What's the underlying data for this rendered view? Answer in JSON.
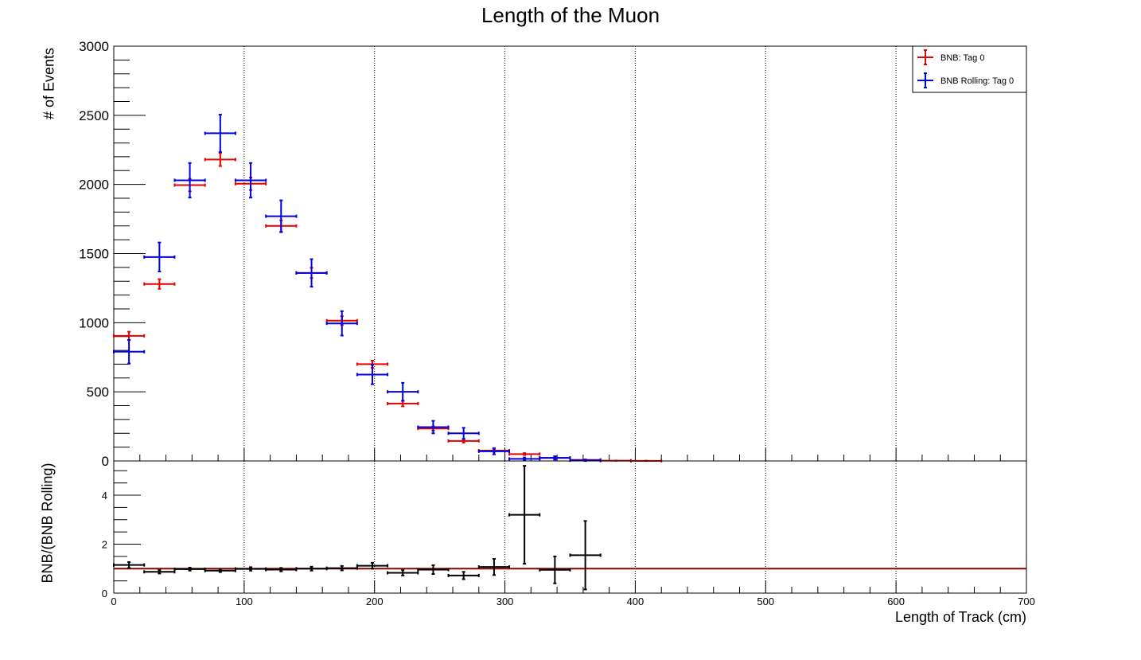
{
  "chart_data": [
    {
      "type": "scatter",
      "title": "Length of the Muon",
      "ylabel": "# of Events",
      "xlim": [
        0,
        700
      ],
      "ylim": [
        0,
        3000
      ],
      "y_ticks": [
        "0",
        "500",
        "1000",
        "1500",
        "2000",
        "2500",
        "3000"
      ],
      "grid": "vertical-dotted",
      "legend_position": "top-right",
      "bin_width": 23.33,
      "series": [
        {
          "name": "BNB: Tag 0",
          "color": "#e60000",
          "points": [
            {
              "x": 11.67,
              "y": 905,
              "err": 30
            },
            {
              "x": 35.0,
              "y": 1280,
              "err": 35
            },
            {
              "x": 58.33,
              "y": 1995,
              "err": 45
            },
            {
              "x": 81.67,
              "y": 2180,
              "err": 47
            },
            {
              "x": 105.0,
              "y": 2005,
              "err": 45
            },
            {
              "x": 128.33,
              "y": 1700,
              "err": 41
            },
            {
              "x": 151.67,
              "y": 1360,
              "err": 37
            },
            {
              "x": 175.0,
              "y": 1015,
              "err": 32
            },
            {
              "x": 198.33,
              "y": 700,
              "err": 26
            },
            {
              "x": 221.67,
              "y": 415,
              "err": 20
            },
            {
              "x": 245.0,
              "y": 235,
              "err": 15
            },
            {
              "x": 268.33,
              "y": 145,
              "err": 12
            },
            {
              "x": 291.67,
              "y": 75,
              "err": 9
            },
            {
              "x": 315.0,
              "y": 50,
              "err": 7
            },
            {
              "x": 338.33,
              "y": 22,
              "err": 5
            },
            {
              "x": 361.67,
              "y": 8,
              "err": 3
            },
            {
              "x": 385.0,
              "y": 2,
              "err": 1
            },
            {
              "x": 408.33,
              "y": 1,
              "err": 1
            }
          ]
        },
        {
          "name": "BNB Rolling: Tag 0",
          "color": "#0000e6",
          "points": [
            {
              "x": 11.67,
              "y": 790,
              "err": 85
            },
            {
              "x": 35.0,
              "y": 1475,
              "err": 105
            },
            {
              "x": 58.33,
              "y": 2030,
              "err": 125
            },
            {
              "x": 81.67,
              "y": 2370,
              "err": 135
            },
            {
              "x": 105.0,
              "y": 2030,
              "err": 125
            },
            {
              "x": 128.33,
              "y": 1770,
              "err": 115
            },
            {
              "x": 151.67,
              "y": 1360,
              "err": 100
            },
            {
              "x": 175.0,
              "y": 995,
              "err": 88
            },
            {
              "x": 198.33,
              "y": 625,
              "err": 70
            },
            {
              "x": 221.67,
              "y": 500,
              "err": 65
            },
            {
              "x": 245.0,
              "y": 245,
              "err": 45
            },
            {
              "x": 268.33,
              "y": 200,
              "err": 40
            },
            {
              "x": 291.67,
              "y": 70,
              "err": 22
            },
            {
              "x": 315.0,
              "y": 15,
              "err": 10
            },
            {
              "x": 338.33,
              "y": 22,
              "err": 12
            },
            {
              "x": 361.67,
              "y": 5,
              "err": 5
            }
          ]
        }
      ]
    },
    {
      "type": "scatter",
      "xlabel": "Length of Track (cm)",
      "ylabel": "BNB/(BNB Rolling)",
      "xlim": [
        0,
        700
      ],
      "ylim": [
        0,
        5.4
      ],
      "x_ticks": [
        "0",
        "100",
        "200",
        "300",
        "400",
        "500",
        "600",
        "700"
      ],
      "y_ticks": [
        "0",
        "2",
        "4"
      ],
      "grid": "vertical-dotted",
      "reference_line": {
        "y": 1.0,
        "color": "#8b0000"
      },
      "bin_width": 23.33,
      "series": [
        {
          "color": "#000000",
          "points": [
            {
              "x": 11.67,
              "y": 1.15,
              "err": 0.12
            },
            {
              "x": 35.0,
              "y": 0.87,
              "err": 0.07
            },
            {
              "x": 58.33,
              "y": 0.98,
              "err": 0.06
            },
            {
              "x": 81.67,
              "y": 0.92,
              "err": 0.06
            },
            {
              "x": 105.0,
              "y": 0.99,
              "err": 0.07
            },
            {
              "x": 128.33,
              "y": 0.96,
              "err": 0.07
            },
            {
              "x": 151.67,
              "y": 1.0,
              "err": 0.08
            },
            {
              "x": 175.0,
              "y": 1.02,
              "err": 0.09
            },
            {
              "x": 198.33,
              "y": 1.12,
              "err": 0.12
            },
            {
              "x": 221.67,
              "y": 0.83,
              "err": 0.11
            },
            {
              "x": 245.0,
              "y": 0.96,
              "err": 0.18
            },
            {
              "x": 268.33,
              "y": 0.72,
              "err": 0.15
            },
            {
              "x": 291.67,
              "y": 1.07,
              "err": 0.33
            },
            {
              "x": 315.0,
              "y": 3.2,
              "err": 2.0
            },
            {
              "x": 338.33,
              "y": 0.95,
              "err": 0.55
            },
            {
              "x": 361.67,
              "y": 1.55,
              "err": 1.4
            }
          ]
        }
      ]
    }
  ]
}
